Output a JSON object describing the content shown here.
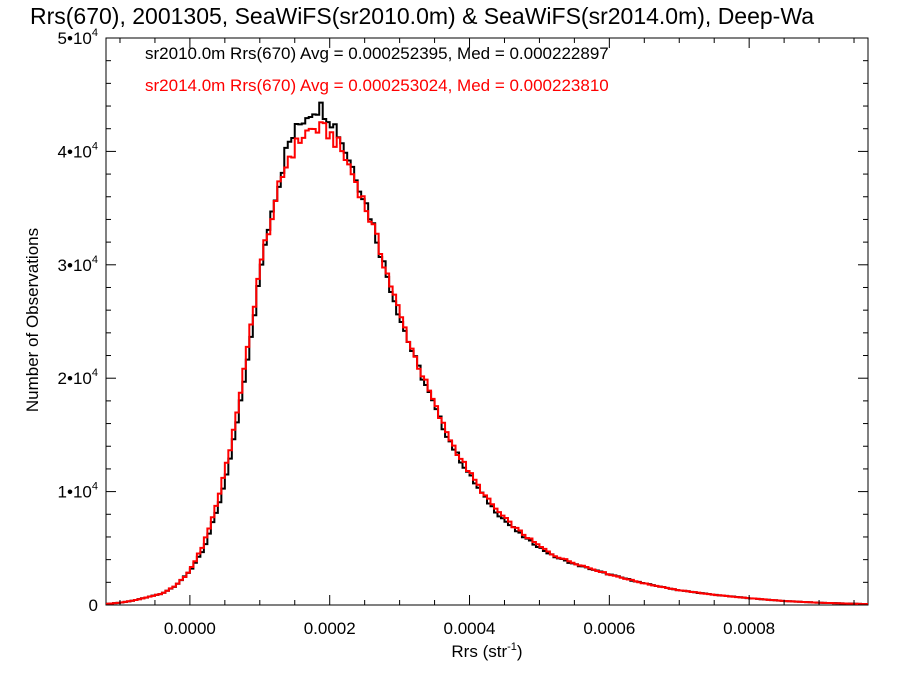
{
  "chart_data": {
    "type": "line",
    "title": "Rrs(670), 2001305, SeaWiFS(sr2010.0m) & SeaWiFS(sr2014.0m), Deep-Wa",
    "xlabel": "Rrs (str",
    "xlabel_sup": "-1",
    "xlabel_end": ")",
    "ylabel": "Number of Observations",
    "xlim": [
      -0.00012,
      0.00097
    ],
    "ylim": [
      0,
      50000
    ],
    "x_ticks": [
      {
        "value": 0.0,
        "label": "0.0000"
      },
      {
        "value": 0.0002,
        "label": "0.0002"
      },
      {
        "value": 0.0004,
        "label": "0.0004"
      },
      {
        "value": 0.0006,
        "label": "0.0006"
      },
      {
        "value": 0.0008,
        "label": "0.0008"
      }
    ],
    "y_ticks": [
      {
        "value": 0,
        "label": "0",
        "sup": ""
      },
      {
        "value": 10000,
        "label": "1•10",
        "sup": "4"
      },
      {
        "value": 20000,
        "label": "2•10",
        "sup": "4"
      },
      {
        "value": 30000,
        "label": "3•10",
        "sup": "4"
      },
      {
        "value": 40000,
        "label": "4•10",
        "sup": "4"
      },
      {
        "value": 50000,
        "label": "5•10",
        "sup": "4"
      }
    ],
    "grid": false,
    "legend_position": "top-left",
    "series": [
      {
        "name": "sr2010.0m Rrs(670) Avg = 0.000252395, Med = 0.000222897",
        "color": "#000000",
        "x": [
          -0.00012,
          -0.0001,
          -8e-05,
          -6e-05,
          -4e-05,
          -2e-05,
          0.0,
          2e-05,
          4e-05,
          6e-05,
          8e-05,
          0.0001,
          0.00012,
          0.00014,
          0.00016,
          0.00017,
          0.00018,
          0.00019,
          0.0002,
          0.00021,
          0.00022,
          0.00023,
          0.00024,
          0.00026,
          0.00028,
          0.0003,
          0.00032,
          0.00034,
          0.00036,
          0.00038,
          0.0004,
          0.00042,
          0.00044,
          0.00046,
          0.00048,
          0.0005,
          0.00052,
          0.00055,
          0.0006,
          0.00065,
          0.0007,
          0.00075,
          0.0008,
          0.00085,
          0.0009,
          0.00097
        ],
        "y": [
          100,
          200,
          400,
          700,
          1000,
          1700,
          3000,
          5000,
          8500,
          13500,
          20500,
          29000,
          35500,
          40500,
          42700,
          43400,
          43900,
          43800,
          43000,
          42000,
          40500,
          39000,
          37500,
          34000,
          29500,
          25500,
          22000,
          19000,
          16000,
          13500,
          11500,
          9600,
          8100,
          6900,
          5900,
          5100,
          4300,
          3600,
          2700,
          1900,
          1300,
          900,
          600,
          350,
          200,
          80
        ]
      },
      {
        "name": "sr2014.0m Rrs(670) Avg = 0.000253024, Med = 0.000223810",
        "color": "#ff0000",
        "x": [
          -0.00012,
          -0.0001,
          -8e-05,
          -6e-05,
          -4e-05,
          -2e-05,
          0.0,
          2e-05,
          4e-05,
          6e-05,
          8e-05,
          0.0001,
          0.00012,
          0.00014,
          0.00016,
          0.00017,
          0.00018,
          0.00019,
          0.0002,
          0.00021,
          0.00022,
          0.00023,
          0.00024,
          0.00026,
          0.00028,
          0.0003,
          0.00032,
          0.00034,
          0.00036,
          0.00038,
          0.0004,
          0.00042,
          0.00044,
          0.00046,
          0.00048,
          0.0005,
          0.00052,
          0.00055,
          0.0006,
          0.00065,
          0.0007,
          0.00075,
          0.0008,
          0.00085,
          0.0009,
          0.00097
        ],
        "y": [
          100,
          200,
          400,
          700,
          1000,
          1700,
          3000,
          5400,
          9200,
          14500,
          21500,
          29800,
          35200,
          39300,
          41300,
          41800,
          42000,
          41900,
          41600,
          40800,
          39700,
          38400,
          37000,
          33700,
          29700,
          25700,
          22200,
          19200,
          16200,
          13700,
          11700,
          9800,
          8300,
          7100,
          6100,
          5200,
          4400,
          3700,
          2700,
          1900,
          1300,
          900,
          600,
          350,
          200,
          80
        ]
      }
    ]
  }
}
